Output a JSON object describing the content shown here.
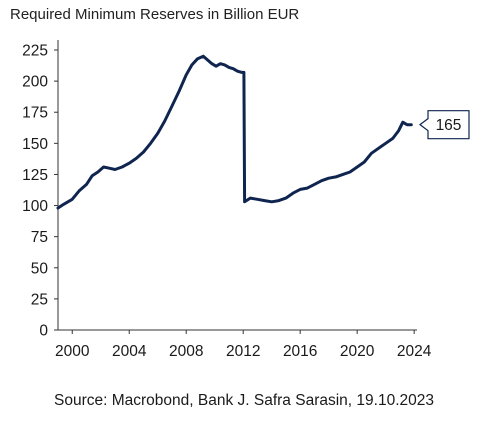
{
  "chart_data": {
    "type": "line",
    "title": "Required Minimum Reserves in Billion EUR",
    "xlabel": "",
    "ylabel": "",
    "xlim": [
      1999.0,
      2024.2
    ],
    "ylim": [
      0,
      225
    ],
    "x_ticks": [
      2000,
      2004,
      2008,
      2012,
      2016,
      2020,
      2024
    ],
    "y_ticks": [
      0,
      25,
      50,
      75,
      100,
      125,
      150,
      175,
      200,
      225
    ],
    "grid": false,
    "legend": "none",
    "line_color": "#0f2550",
    "annotation": "165",
    "series": [
      {
        "x": [
          1999.0,
          1999.4,
          2000.0,
          2000.5,
          2001.0,
          2001.4,
          2001.8,
          2002.2,
          2002.6,
          2003.0,
          2003.5,
          2004.0,
          2004.5,
          2005.0,
          2005.5,
          2006.0,
          2006.5,
          2007.0,
          2007.5,
          2008.0,
          2008.4,
          2008.8,
          2009.2,
          2009.5,
          2009.8,
          2010.1,
          2010.4,
          2010.7,
          2011.0,
          2011.3,
          2011.6,
          2011.9,
          2012.05,
          2012.1,
          2012.5,
          2013.0,
          2013.5,
          2014.0,
          2014.5,
          2015.0,
          2015.5,
          2016.0,
          2016.5,
          2017.0,
          2017.5,
          2018.0,
          2018.5,
          2019.0,
          2019.5,
          2020.0,
          2020.5,
          2021.0,
          2021.5,
          2022.0,
          2022.5,
          2022.9,
          2023.2,
          2023.5,
          2023.8
        ],
        "values": [
          98,
          101,
          105,
          112,
          117,
          124,
          127,
          131,
          130,
          129,
          131,
          134,
          138,
          143,
          150,
          158,
          168,
          180,
          192,
          205,
          213,
          218,
          220,
          217,
          214,
          212,
          214,
          213,
          211,
          210,
          208,
          207,
          207,
          103,
          106,
          105,
          104,
          103,
          104,
          106,
          110,
          113,
          114,
          117,
          120,
          122,
          123,
          125,
          127,
          131,
          135,
          142,
          146,
          150,
          154,
          160,
          167,
          165,
          165
        ]
      }
    ]
  },
  "source": "Source: Macrobond, Bank J. Safra Sarasin, 19.10.2023"
}
